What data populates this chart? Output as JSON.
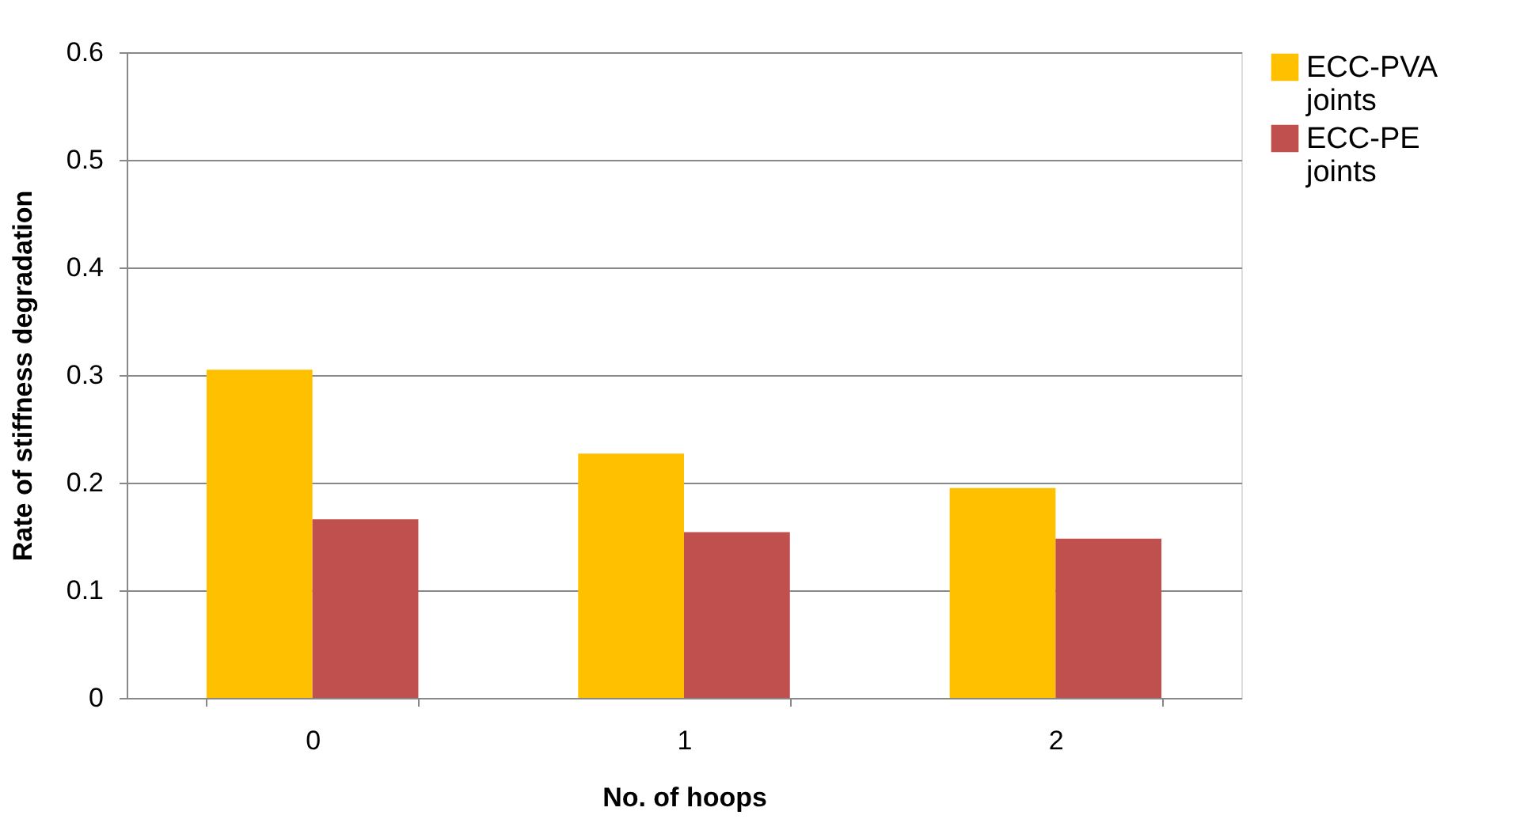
{
  "chart_data": {
    "type": "bar",
    "xlabel": "No. of hoops",
    "ylabel": "Rate of stiffness degradation",
    "categories": [
      "0",
      "1",
      "2"
    ],
    "series": [
      {
        "name": "ECC-PVA joints",
        "color": "#ffc000",
        "values": [
          0.305,
          0.227,
          0.195
        ]
      },
      {
        "name": "ECC-PE joints",
        "color": "#c0504d",
        "values": [
          0.166,
          0.154,
          0.148
        ]
      }
    ],
    "ylim": [
      0,
      0.6
    ],
    "yticks": [
      0,
      0.1,
      0.2,
      0.3,
      0.4,
      0.5,
      0.6
    ],
    "grid": "y",
    "legend": "right"
  }
}
